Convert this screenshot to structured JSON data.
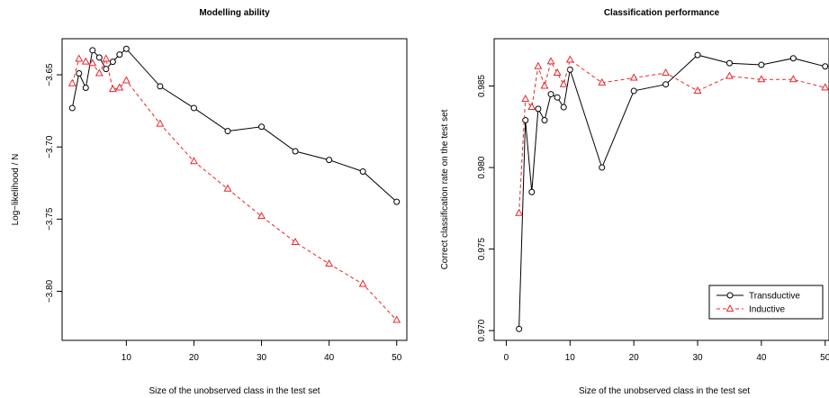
{
  "chart_data": [
    {
      "type": "line",
      "title": "Modelling ability",
      "xlabel": "Size of the unobserved class in the test set",
      "ylabel": "Log−likelihood / N",
      "xlim": [
        0.5,
        51.5
      ],
      "ylim": [
        -3.834,
        -3.625
      ],
      "x_ticks": [
        10,
        20,
        30,
        40,
        50
      ],
      "x_tick_labels": [
        "10",
        "20",
        "30",
        "40",
        "50"
      ],
      "y_ticks": [
        -3.65,
        -3.7,
        -3.75,
        -3.8
      ],
      "y_tick_labels": [
        "−3.65",
        "−3.70",
        "−3.75",
        "−3.80"
      ],
      "series": [
        {
          "color": "#000000",
          "marker": "circle",
          "dash": "solid",
          "x": [
            2,
            3,
            4,
            5,
            6,
            7,
            8,
            9,
            10,
            15,
            20,
            25,
            30,
            35,
            40,
            45,
            50
          ],
          "y": [
            -3.673,
            -3.649,
            -3.659,
            -3.633,
            -3.638,
            -3.646,
            -3.641,
            -3.636,
            -3.632,
            -3.658,
            -3.673,
            -3.689,
            -3.686,
            -3.703,
            -3.709,
            -3.717,
            -3.738
          ]
        },
        {
          "color": "#e8262b",
          "marker": "triangle",
          "dash": "dashed",
          "x": [
            2,
            3,
            4,
            5,
            6,
            7,
            8,
            9,
            10,
            15,
            20,
            25,
            30,
            35,
            40,
            45,
            50
          ],
          "y": [
            -3.656,
            -3.639,
            -3.641,
            -3.642,
            -3.649,
            -3.639,
            -3.66,
            -3.659,
            -3.654,
            -3.684,
            -3.71,
            -3.729,
            -3.748,
            -3.766,
            -3.781,
            -3.795,
            -3.82
          ]
        }
      ]
    },
    {
      "type": "line",
      "title": "Classification performance",
      "xlabel": "Size of the unobserved class in the test set",
      "ylabel": "Correct classification rate on the test set",
      "xlim": [
        -1.9,
        50.6
      ],
      "ylim": [
        0.9694,
        0.9879
      ],
      "x_ticks": [
        0,
        10,
        20,
        30,
        40,
        50
      ],
      "x_tick_labels": [
        "0",
        "10",
        "20",
        "30",
        "40",
        "50"
      ],
      "y_ticks": [
        0.97,
        0.975,
        0.98,
        0.985
      ],
      "y_tick_labels": [
        "0.970",
        "0.975",
        "0.980",
        "0.985"
      ],
      "legend": {
        "position": "bottom-right",
        "entries": [
          "Transductive",
          "Inductive"
        ]
      },
      "series": [
        {
          "name": "Transductive",
          "color": "#000000",
          "marker": "circle",
          "dash": "solid",
          "x": [
            2,
            3,
            4,
            5,
            6,
            7,
            8,
            9,
            10,
            15,
            20,
            25,
            30,
            35,
            40,
            45,
            50
          ],
          "y": [
            0.9701,
            0.9829,
            0.9785,
            0.9836,
            0.9829,
            0.9845,
            0.9843,
            0.9837,
            0.986,
            0.98,
            0.9847,
            0.9851,
            0.9869,
            0.9864,
            0.9863,
            0.9867,
            0.9862
          ]
        },
        {
          "name": "Inductive",
          "color": "#e8262b",
          "marker": "triangle",
          "dash": "dashed",
          "x": [
            2,
            3,
            4,
            5,
            6,
            7,
            8,
            9,
            10,
            15,
            20,
            25,
            30,
            35,
            40,
            45,
            50
          ],
          "y": [
            0.9772,
            0.9842,
            0.9837,
            0.9862,
            0.985,
            0.9865,
            0.9858,
            0.9851,
            0.9866,
            0.9852,
            0.9855,
            0.9858,
            0.9847,
            0.9856,
            0.9854,
            0.9854,
            0.9849
          ]
        }
      ]
    }
  ]
}
